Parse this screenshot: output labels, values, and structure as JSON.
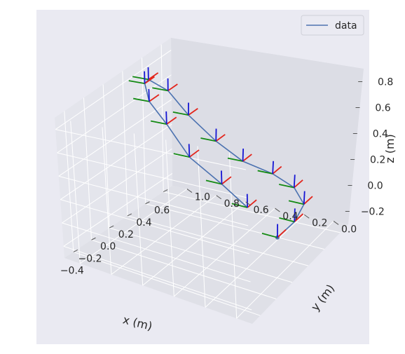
{
  "chart_data": {
    "type": "line",
    "projection": "3d",
    "xlabel": "x (m)",
    "ylabel": "y (m)",
    "zlabel": "z (m)",
    "x_ticks": [
      "−0.4",
      "−0.2",
      "0.0",
      "0.2",
      "0.4",
      "0.6"
    ],
    "y_ticks": [
      "0.0",
      "0.2",
      "0.4",
      "0.6",
      "0.8",
      "1.0"
    ],
    "z_ticks": [
      "−0.2",
      "0.0",
      "0.2",
      "0.4",
      "0.6",
      "0.8"
    ],
    "x_range": [
      -0.5,
      0.7
    ],
    "y_range": [
      -0.1,
      1.1
    ],
    "z_range": [
      -0.3,
      0.9
    ],
    "grid": true,
    "legend": {
      "placement": "top-right",
      "entries": [
        "data"
      ]
    },
    "series": [
      {
        "name": "data",
        "color": "#4c72b0",
        "marker_start": true,
        "points": [
          {
            "x": 0.0,
            "y": 0.0,
            "z": 0.0
          },
          {
            "x": 0.2,
            "y": 0.0,
            "z": 0.0
          },
          {
            "x": 0.4,
            "y": 0.05,
            "z": 0.0
          },
          {
            "x": 0.55,
            "y": 0.2,
            "z": 0.0
          },
          {
            "x": 0.65,
            "y": 0.4,
            "z": 0.0
          },
          {
            "x": 0.65,
            "y": 0.6,
            "z": 0.05
          },
          {
            "x": 0.6,
            "y": 0.75,
            "z": 0.2
          },
          {
            "x": 0.55,
            "y": 0.9,
            "z": 0.4
          },
          {
            "x": 0.5,
            "y": 1.0,
            "z": 0.6
          },
          {
            "x": 0.3,
            "y": 1.0,
            "z": 0.8
          },
          {
            "x": 0.1,
            "y": 0.9,
            "z": 0.9
          },
          {
            "x": -0.1,
            "y": 0.75,
            "z": 0.9
          },
          {
            "x": -0.25,
            "y": 0.55,
            "z": 0.85
          },
          {
            "x": -0.35,
            "y": 0.35,
            "z": 0.7
          },
          {
            "x": -0.35,
            "y": 0.15,
            "z": 0.55
          },
          {
            "x": -0.25,
            "y": 0.05,
            "z": 0.35
          }
        ]
      }
    ],
    "frame_axes": {
      "x_color": "#e3241b",
      "y_color": "#138a13",
      "z_color": "#1616d4"
    }
  },
  "colors": {
    "pane_back": "#dcdde5",
    "pane_side": "#e4e5ec",
    "pane_floor": "#dfe0e7",
    "background": "#eaeaf2",
    "grid": "#ffffff"
  }
}
